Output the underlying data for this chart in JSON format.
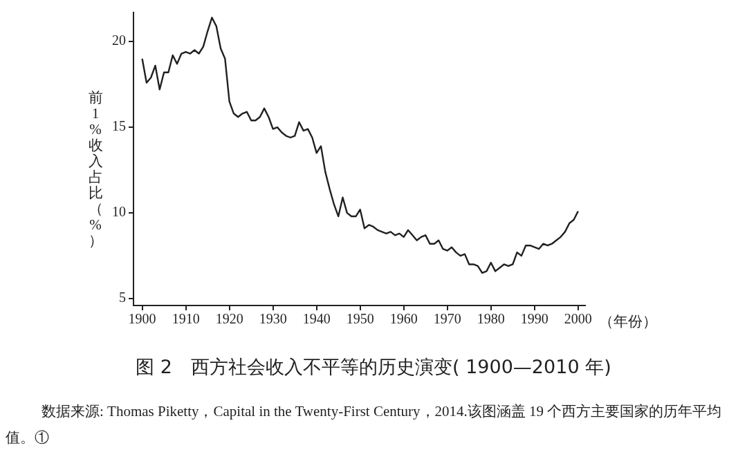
{
  "chart_data": {
    "type": "line",
    "title": "图 2　西方社会收入不平等的历史演变( 1900—2010 年)",
    "xlabel": "（年份）",
    "ylabel": "前1%收入占比（%）",
    "annotations": [
      "数据来源: Thomas Piketty，Capital in the Twenty-First Century，2014.该图涵盖 19 个西方主要国家的历年平均值。①"
    ],
    "x": [
      1900,
      1901,
      1902,
      1903,
      1904,
      1905,
      1906,
      1907,
      1908,
      1909,
      1910,
      1911,
      1912,
      1913,
      1914,
      1915,
      1916,
      1917,
      1918,
      1919,
      1920,
      1921,
      1922,
      1923,
      1924,
      1925,
      1926,
      1927,
      1928,
      1929,
      1930,
      1931,
      1932,
      1933,
      1934,
      1935,
      1936,
      1937,
      1938,
      1939,
      1940,
      1941,
      1942,
      1943,
      1944,
      1945,
      1946,
      1947,
      1948,
      1949,
      1950,
      1951,
      1952,
      1953,
      1954,
      1955,
      1956,
      1957,
      1958,
      1959,
      1960,
      1961,
      1962,
      1963,
      1964,
      1965,
      1966,
      1967,
      1968,
      1969,
      1970,
      1971,
      1972,
      1973,
      1974,
      1975,
      1976,
      1977,
      1978,
      1979,
      1980,
      1981,
      1982,
      1983,
      1984,
      1985,
      1986,
      1987,
      1988,
      1989,
      1990,
      1991,
      1992,
      1993,
      1994,
      1995,
      1996,
      1997,
      1998,
      1999,
      2000
    ],
    "series": [
      {
        "color": "#231f20",
        "line_style": "solid",
        "marker": "none",
        "values": [
          19.0,
          17.6,
          17.9,
          18.6,
          17.2,
          18.2,
          18.2,
          19.2,
          18.7,
          19.3,
          19.4,
          19.3,
          19.5,
          19.3,
          19.7,
          20.6,
          21.4,
          20.9,
          19.6,
          19.0,
          16.5,
          15.8,
          15.6,
          15.8,
          15.9,
          15.4,
          15.4,
          15.6,
          16.1,
          15.6,
          14.9,
          15.0,
          14.7,
          14.5,
          14.4,
          14.5,
          15.3,
          14.8,
          14.9,
          14.4,
          13.5,
          13.9,
          12.4,
          11.4,
          10.5,
          9.8,
          10.9,
          10.0,
          9.8,
          9.8,
          10.2,
          9.1,
          9.3,
          9.2,
          9.0,
          8.9,
          8.8,
          8.9,
          8.7,
          8.8,
          8.6,
          9.0,
          8.7,
          8.4,
          8.6,
          8.7,
          8.2,
          8.2,
          8.4,
          7.9,
          7.8,
          8.0,
          7.7,
          7.5,
          7.6,
          7.0,
          7.0,
          6.9,
          6.5,
          6.6,
          7.1,
          6.6,
          6.8,
          7.0,
          6.9,
          7.0,
          7.7,
          7.5,
          8.1,
          8.1,
          8.0,
          7.9,
          8.2,
          8.1,
          8.2,
          8.4,
          8.6,
          8.9,
          9.4,
          9.6,
          10.1
        ]
      }
    ],
    "xlim": [
      1898,
      2001.6
    ],
    "ylim": [
      4.6,
      21.7
    ],
    "xticks": [
      1900,
      1910,
      1920,
      1930,
      1940,
      1950,
      1960,
      1970,
      1980,
      1990,
      2000
    ],
    "yticks": [
      5,
      10,
      15,
      20
    ]
  }
}
